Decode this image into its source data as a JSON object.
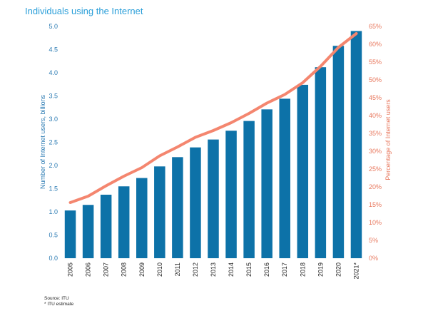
{
  "chart_data": {
    "type": "bar",
    "title": "Individuals using the Internet",
    "categories": [
      "2005",
      "2006",
      "2007",
      "2008",
      "2009",
      "2010",
      "2011",
      "2012",
      "2013",
      "2014",
      "2015",
      "2016",
      "2017",
      "2018",
      "2019",
      "2020",
      "2021*"
    ],
    "series": [
      {
        "name": "Number of Internet users, billions",
        "type": "bar",
        "axis": "left",
        "color": "#0d72a8",
        "values": [
          1.03,
          1.15,
          1.37,
          1.55,
          1.73,
          1.98,
          2.18,
          2.39,
          2.56,
          2.75,
          2.96,
          3.21,
          3.44,
          3.74,
          4.12,
          4.58,
          4.9
        ]
      },
      {
        "name": "Percentage of Internet users",
        "type": "line",
        "axis": "right",
        "color": "#f4866f",
        "values": [
          15.6,
          17.4,
          20.3,
          23.0,
          25.4,
          28.7,
          31.2,
          33.9,
          35.8,
          38.0,
          40.6,
          43.5,
          45.9,
          49.2,
          53.8,
          59.1,
          63.0
        ]
      }
    ],
    "ylabel": "Number of Internet users, billions",
    "y2label": "Percentage of Internet users",
    "ylim": [
      0,
      5
    ],
    "y2lim": [
      0,
      65
    ],
    "yticks": [
      "0.0",
      "0.5",
      "1.0",
      "1.5",
      "2.0",
      "2.5",
      "3.0",
      "3.5",
      "4.0",
      "4.5",
      "5.0"
    ],
    "y2ticks": [
      "0%",
      "5%",
      "10%",
      "15%",
      "20%",
      "25%",
      "30%",
      "35%",
      "40%",
      "45%",
      "50%",
      "55%",
      "60%",
      "65%"
    ],
    "grid": false
  },
  "notes": {
    "source": "Source: ITU",
    "estimate": "* ITU estimate"
  }
}
